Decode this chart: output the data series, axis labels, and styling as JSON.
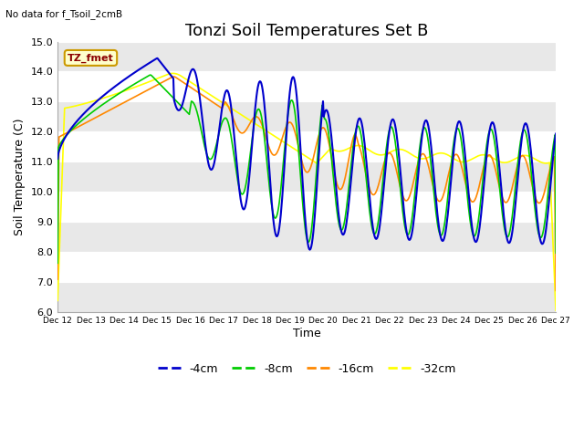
{
  "title": "Tonzi Soil Temperatures Set B",
  "subtitle": "No data for f_Tsoil_2cmB",
  "ylabel": "Soil Temperature (C)",
  "xlabel": "Time",
  "annotation": "TZ_fmet",
  "ylim": [
    6.0,
    15.0
  ],
  "yticks": [
    6.0,
    7.0,
    8.0,
    9.0,
    10.0,
    11.0,
    12.0,
    13.0,
    14.0,
    15.0
  ],
  "xtick_labels": [
    "Dec 12",
    "Dec 13",
    "Dec 14",
    "Dec 15",
    "Dec 16",
    "Dec 17",
    "Dec 18",
    "Dec 19",
    "Dec 20",
    "Dec 21",
    "Dec 22",
    "Dec 23",
    "Dec 24",
    "Dec 25",
    "Dec 26",
    "Dec 27"
  ],
  "colors": {
    "4cm": "#0000cc",
    "8cm": "#00cc00",
    "16cm": "#ff8800",
    "32cm": "#ffff00"
  },
  "bg_color": "#ffffff",
  "stripe_color": "#e8e8e8",
  "title_fontsize": 13,
  "axis_fontsize": 9,
  "tick_fontsize": 8
}
